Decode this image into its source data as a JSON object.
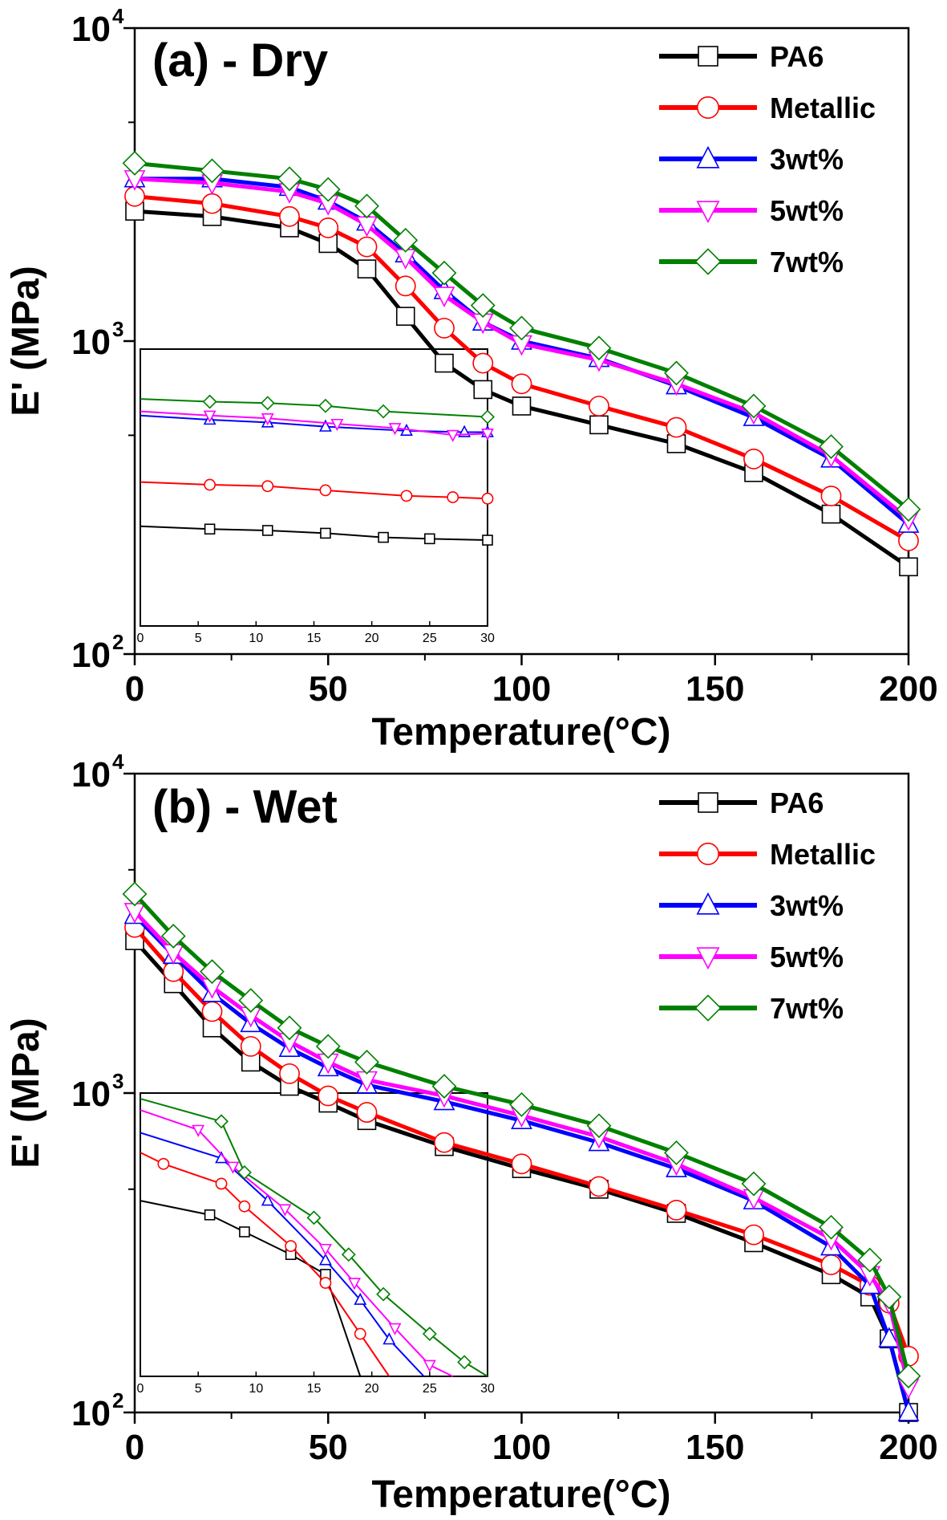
{
  "chart_data": [
    {
      "type": "line",
      "panel": "a",
      "title": "(a)  - Dry",
      "xlabel": "Temperature(°C)",
      "ylabel": "E' (MPa)",
      "xlim": [
        0,
        200
      ],
      "ylim": [
        100,
        10000
      ],
      "yscale": "log",
      "xticks": [
        0,
        50,
        100,
        150,
        200
      ],
      "yticks": [
        {
          "value": 100,
          "base": "10",
          "exp": "2"
        },
        {
          "value": 1000,
          "base": "10",
          "exp": "3"
        },
        {
          "value": 10000,
          "base": "10",
          "exp": "4"
        }
      ],
      "legend_position": "top-right",
      "series": [
        {
          "name": "PA6",
          "color": "#000000",
          "marker": "square",
          "x": [
            0,
            20,
            40,
            50,
            60,
            70,
            80,
            90,
            100,
            120,
            140,
            160,
            180,
            200
          ],
          "y": [
            2600,
            2500,
            2300,
            2050,
            1700,
            1200,
            850,
            700,
            620,
            540,
            470,
            380,
            280,
            190
          ]
        },
        {
          "name": "Metallic",
          "color": "#ff0000",
          "marker": "circle",
          "x": [
            0,
            20,
            40,
            50,
            60,
            70,
            80,
            90,
            100,
            120,
            140,
            160,
            180,
            200
          ],
          "y": [
            2900,
            2750,
            2500,
            2300,
            2000,
            1500,
            1100,
            850,
            730,
            620,
            530,
            420,
            320,
            230
          ]
        },
        {
          "name": "3wt%",
          "color": "#0000ff",
          "marker": "triangle-up",
          "x": [
            0,
            20,
            40,
            50,
            60,
            70,
            80,
            90,
            100,
            120,
            140,
            160,
            180,
            200
          ],
          "y": [
            3300,
            3300,
            3100,
            2800,
            2400,
            1900,
            1450,
            1150,
            1000,
            880,
            720,
            570,
            420,
            260
          ]
        },
        {
          "name": "5wt%",
          "color": "#ff00ff",
          "marker": "triangle-down",
          "x": [
            0,
            20,
            40,
            50,
            60,
            70,
            80,
            90,
            100,
            120,
            140,
            160,
            180,
            200
          ],
          "y": [
            3300,
            3200,
            3000,
            2750,
            2350,
            1850,
            1400,
            1150,
            980,
            870,
            730,
            590,
            430,
            270
          ]
        },
        {
          "name": "7wt%",
          "color": "#008000",
          "marker": "diamond",
          "x": [
            0,
            20,
            40,
            50,
            60,
            70,
            80,
            90,
            100,
            120,
            140,
            160,
            180,
            200
          ],
          "y": [
            3700,
            3500,
            3300,
            3050,
            2700,
            2100,
            1650,
            1300,
            1100,
            950,
            790,
            620,
            460,
            290
          ]
        }
      ],
      "inset": {
        "xlim": [
          0,
          30
        ],
        "xticks": [
          0,
          5,
          10,
          15,
          20,
          25,
          30
        ],
        "series": [
          {
            "name": "PA6",
            "x": [
              0,
              6,
              11,
              16,
              21,
              25,
              30
            ],
            "y": [
              0.36,
              0.35,
              0.345,
              0.335,
              0.32,
              0.315,
              0.31
            ]
          },
          {
            "name": "Metallic",
            "x": [
              0,
              6,
              11,
              16,
              23,
              27,
              30
            ],
            "y": [
              0.52,
              0.51,
              0.505,
              0.49,
              0.47,
              0.465,
              0.46
            ]
          },
          {
            "name": "3wt%",
            "x": [
              0,
              6,
              11,
              16,
              23,
              28,
              30
            ],
            "y": [
              0.76,
              0.745,
              0.735,
              0.72,
              0.705,
              0.7,
              0.7
            ]
          },
          {
            "name": "5wt%",
            "x": [
              0,
              6,
              11,
              17,
              22,
              27,
              30
            ],
            "y": [
              0.775,
              0.76,
              0.75,
              0.73,
              0.715,
              0.69,
              0.695
            ]
          },
          {
            "name": "7wt%",
            "x": [
              0,
              6,
              11,
              16,
              21,
              30
            ],
            "y": [
              0.82,
              0.81,
              0.805,
              0.795,
              0.775,
              0.755
            ]
          }
        ]
      }
    },
    {
      "type": "line",
      "panel": "b",
      "title": "(b)  - Wet",
      "xlabel": "Temperature(°C)",
      "ylabel": "E' (MPa)",
      "xlim": [
        0,
        200
      ],
      "ylim": [
        100,
        10000
      ],
      "yscale": "log",
      "xticks": [
        0,
        50,
        100,
        150,
        200
      ],
      "yticks": [
        {
          "value": 100,
          "base": "10",
          "exp": "2"
        },
        {
          "value": 1000,
          "base": "10",
          "exp": "3"
        },
        {
          "value": 10000,
          "base": "10",
          "exp": "4"
        }
      ],
      "legend_position": "top-right",
      "series": [
        {
          "name": "PA6",
          "color": "#000000",
          "marker": "square",
          "x": [
            0,
            10,
            20,
            30,
            40,
            50,
            60,
            80,
            100,
            120,
            140,
            160,
            180,
            190,
            195,
            200
          ],
          "y": [
            3000,
            2200,
            1600,
            1250,
            1050,
            930,
            820,
            680,
            580,
            500,
            420,
            340,
            270,
            230,
            170,
            100
          ]
        },
        {
          "name": "Metallic",
          "color": "#ff0000",
          "marker": "circle",
          "x": [
            0,
            10,
            20,
            30,
            40,
            50,
            60,
            80,
            100,
            120,
            140,
            160,
            180,
            190,
            195,
            200
          ],
          "y": [
            3300,
            2400,
            1800,
            1400,
            1150,
            980,
            870,
            700,
            600,
            510,
            430,
            360,
            290,
            250,
            220,
            150
          ]
        },
        {
          "name": "3wt%",
          "color": "#0000ff",
          "marker": "triangle-up",
          "x": [
            0,
            10,
            20,
            30,
            40,
            50,
            60,
            80,
            100,
            120,
            140,
            160,
            180,
            190,
            195,
            200
          ],
          "y": [
            3600,
            2700,
            2050,
            1650,
            1380,
            1200,
            1060,
            940,
            820,
            700,
            580,
            460,
            330,
            250,
            170,
            100
          ]
        },
        {
          "name": "5wt%",
          "color": "#ff00ff",
          "marker": "triangle-down",
          "x": [
            0,
            10,
            20,
            30,
            40,
            50,
            60,
            80,
            100,
            120,
            140,
            160,
            180,
            190,
            195,
            200
          ],
          "y": [
            3700,
            2750,
            2150,
            1750,
            1450,
            1250,
            1100,
            980,
            850,
            730,
            600,
            470,
            350,
            270,
            220,
            120
          ]
        },
        {
          "name": "7wt%",
          "color": "#008000",
          "marker": "diamond",
          "x": [
            0,
            10,
            20,
            30,
            40,
            50,
            60,
            80,
            100,
            120,
            140,
            160,
            180,
            190,
            195,
            200
          ],
          "y": [
            4200,
            3100,
            2400,
            1950,
            1600,
            1400,
            1250,
            1050,
            920,
            790,
            650,
            520,
            380,
            300,
            230,
            130
          ]
        }
      ],
      "inset": {
        "xlim": [
          0,
          30
        ],
        "xticks": [
          0,
          5,
          10,
          15,
          20,
          25,
          30
        ],
        "series": [
          {
            "name": "PA6",
            "x": [
              0,
              6,
              9,
              13,
              16,
              19
            ],
            "y": [
              0.62,
              0.57,
              0.51,
              0.43,
              0.36,
              0.0
            ]
          },
          {
            "name": "Metallic",
            "x": [
              0,
              2,
              7,
              9,
              13,
              16,
              19,
              21.5
            ],
            "y": [
              0.79,
              0.75,
              0.68,
              0.6,
              0.46,
              0.33,
              0.15,
              0.0
            ]
          },
          {
            "name": "3wt%",
            "x": [
              0,
              7,
              11,
              16,
              19,
              21.5,
              24.5
            ],
            "y": [
              0.86,
              0.77,
              0.62,
              0.41,
              0.27,
              0.13,
              0.0
            ]
          },
          {
            "name": "5wt%",
            "x": [
              0,
              5,
              8,
              12.5,
              16,
              18.5,
              22,
              25,
              27
            ],
            "y": [
              0.94,
              0.87,
              0.74,
              0.59,
              0.45,
              0.33,
              0.17,
              0.04,
              0.0
            ]
          },
          {
            "name": "7wt%",
            "x": [
              0,
              7,
              9,
              15,
              18,
              21,
              25,
              28,
              30
            ],
            "y": [
              0.98,
              0.9,
              0.72,
              0.56,
              0.43,
              0.29,
              0.15,
              0.05,
              0.0
            ]
          }
        ]
      }
    }
  ]
}
